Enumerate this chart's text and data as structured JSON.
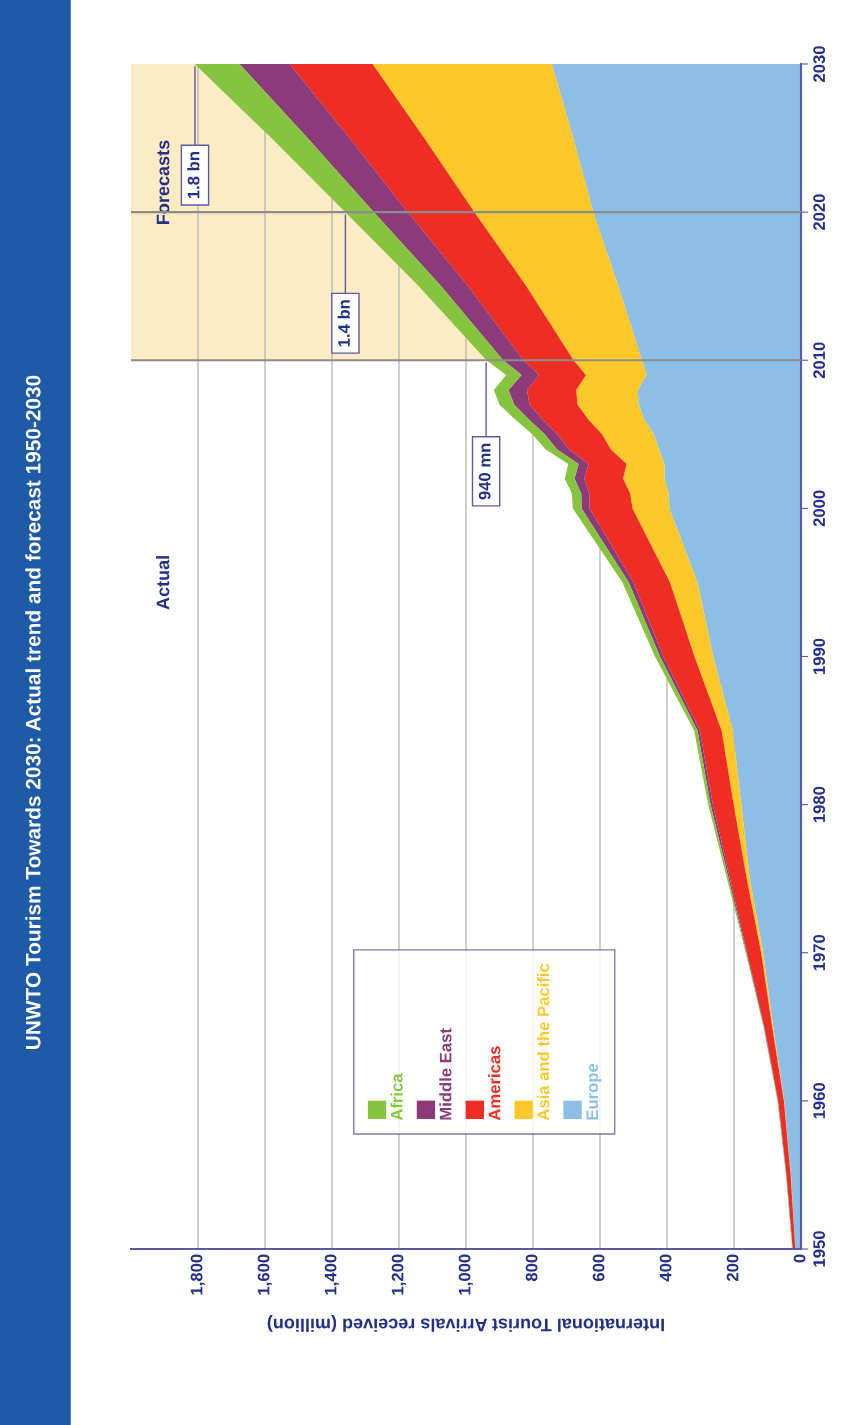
{
  "chart_data": {
    "type": "area",
    "stacked": true,
    "orientation": "horizontal",
    "title": "UNWTO Tourism Towards 2030: Actual trend and forecast 1950-2030",
    "xlabel": "International Tourist Arrivals received (million)",
    "x": [
      1950,
      1955,
      1960,
      1965,
      1970,
      1975,
      1980,
      1985,
      1990,
      1995,
      2000,
      2001,
      2002,
      2003,
      2004,
      2005,
      2006,
      2007,
      2008,
      2009,
      2010,
      2015,
      2020,
      2025,
      2030
    ],
    "series": [
      {
        "name": "Europe",
        "color": "#8dbfe6",
        "values": [
          17,
          30,
          50,
          83,
          113,
          153,
          178,
          204,
          262,
          309,
          393,
          395,
          407,
          408,
          424,
          440,
          468,
          485,
          487,
          461,
          475,
          545,
          620,
          680,
          744
        ]
      },
      {
        "name": "Asia and the Pacific",
        "color": "#ffc82a",
        "values": [
          0,
          1,
          1,
          3,
          6,
          9,
          23,
          33,
          56,
          82,
          110,
          115,
          124,
          113,
          144,
          154,
          167,
          182,
          184,
          181,
          204,
          275,
          355,
          445,
          535
        ]
      },
      {
        "name": "Americas",
        "color": "#ee2d24",
        "values": [
          8,
          12,
          17,
          23,
          42,
          50,
          62,
          65,
          93,
          109,
          128,
          122,
          116,
          113,
          125,
          133,
          136,
          143,
          147,
          140,
          150,
          174,
          199,
          223,
          248
        ]
      },
      {
        "name": "Middle East",
        "color": "#8b3a7a",
        "values": [
          0,
          1,
          1,
          2,
          2,
          4,
          7,
          7,
          10,
          14,
          24,
          24,
          29,
          30,
          36,
          38,
          41,
          46,
          55,
          52,
          60,
          80,
          101,
          125,
          149
        ]
      },
      {
        "name": "Africa",
        "color": "#86c440",
        "values": [
          1,
          1,
          1,
          1,
          2,
          5,
          7,
          10,
          15,
          19,
          26,
          28,
          29,
          31,
          34,
          37,
          41,
          44,
          44,
          46,
          50,
          67,
          85,
          108,
          134
        ]
      }
    ],
    "xlim": [
      2000,
      0
    ],
    "xticks": [
      0,
      200,
      400,
      600,
      800,
      {
        "value": 1000,
        "label": "1,000"
      },
      {
        "value": 1200,
        "label": "1,200"
      },
      {
        "value": 1400,
        "label": "1,400"
      },
      {
        "value": 1600,
        "label": "1,600"
      },
      {
        "value": 1800,
        "label": "1,800"
      }
    ],
    "ylim": [
      1950,
      2030
    ],
    "yticks": [
      1950,
      1960,
      1970,
      1980,
      1990,
      2000,
      2010,
      2020,
      2030
    ],
    "grid": "x",
    "legend": "top left",
    "bands": [
      {
        "axis": "y",
        "from": 2010,
        "to": 2030,
        "label": "Forecasts",
        "color": "#fdebc4"
      }
    ],
    "ref_lines": [
      {
        "axis": "y",
        "value": 2010,
        "color": "#8c8c8c"
      },
      {
        "axis": "y",
        "value": 2020,
        "color": "#8c8c8c"
      }
    ],
    "annotations": [
      "Actual",
      {
        "text": "940 mn",
        "x": 940,
        "y": 2010
      },
      {
        "text": "1.4 bn",
        "x": 1360,
        "y": 2020
      },
      {
        "text": "1.8 bn",
        "x": 1809,
        "y": 2030
      }
    ]
  }
}
